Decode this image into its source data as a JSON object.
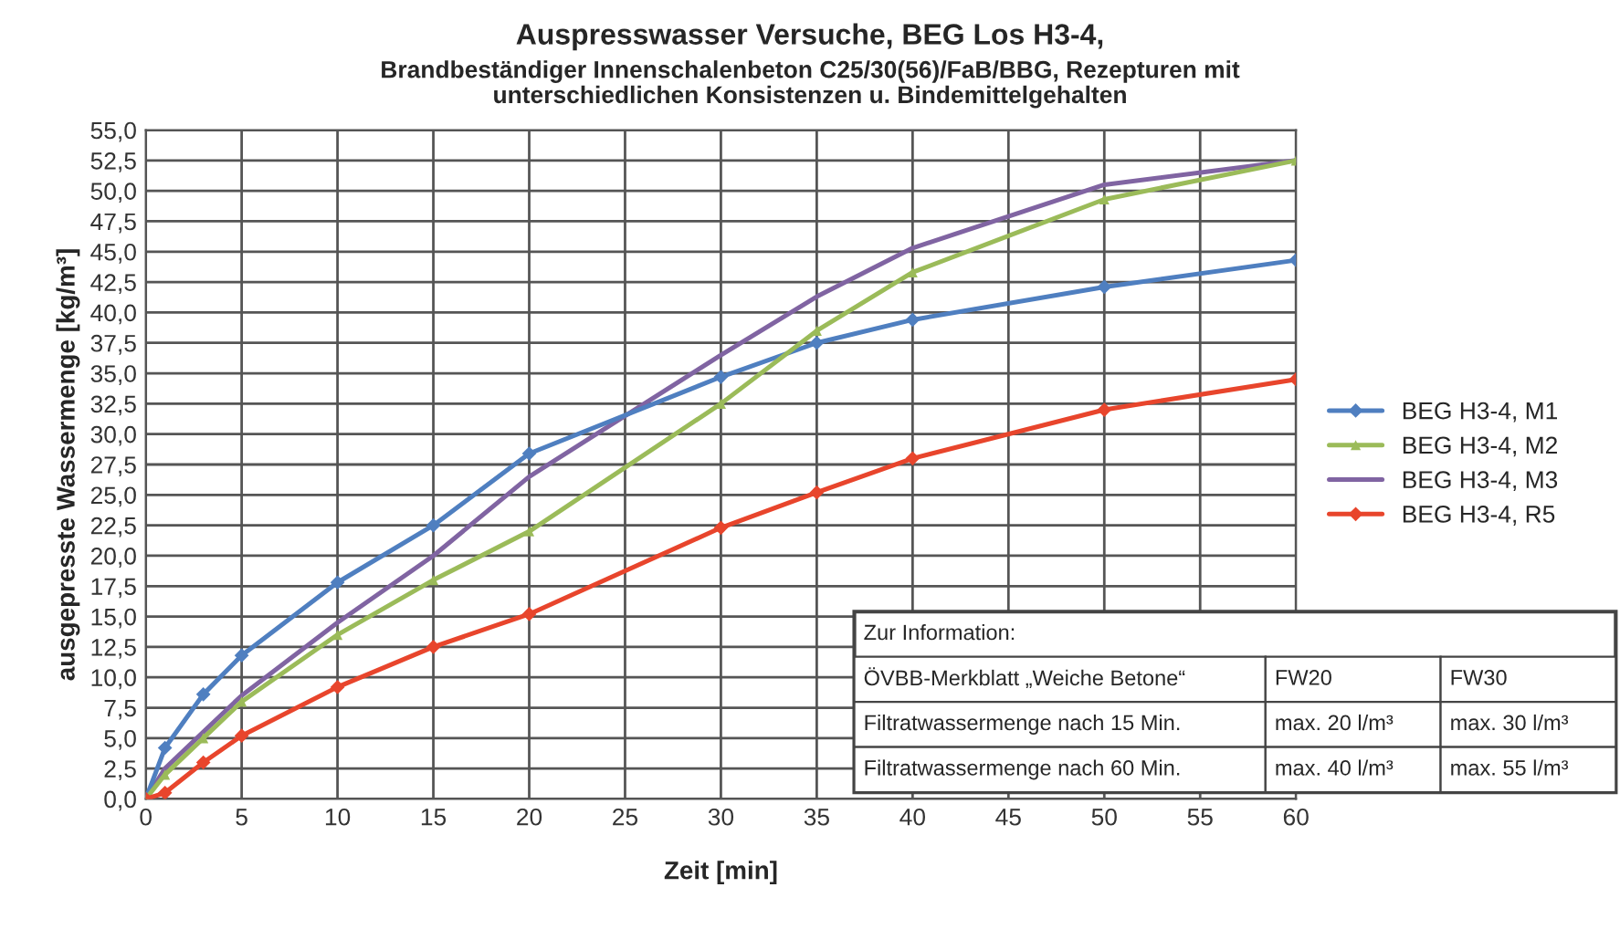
{
  "chart_data": {
    "type": "line",
    "title": "Auspresswasser Versuche, BEG Los H3-4,",
    "subtitle": "Brandbeständiger Innenschalenbeton C25/30(56)/FaB/BBG, Rezepturen mit\nunterschiedlichen Konsistenzen u. Bindemittelgehalten",
    "xlabel": "Zeit [min]",
    "ylabel": "ausgepresste Wassermenge [kg/m³]",
    "x": [
      0,
      1,
      3,
      5,
      10,
      15,
      20,
      30,
      35,
      40,
      50,
      60
    ],
    "series": [
      {
        "name": "BEG H3-4, M1",
        "color": "#4f7fc0",
        "marker": "diamond",
        "values": [
          0,
          4.2,
          8.6,
          11.8,
          17.8,
          22.5,
          28.4,
          34.7,
          37.5,
          39.4,
          42.1,
          44.3
        ]
      },
      {
        "name": "BEG H3-4, M2",
        "color": "#9bbb59",
        "marker": "triangle",
        "values": [
          0,
          2.0,
          5.0,
          8.0,
          13.5,
          18.0,
          22.0,
          32.5,
          38.5,
          43.3,
          49.3,
          52.5
        ]
      },
      {
        "name": "BEG H3-4, M3",
        "color": "#8064a2",
        "marker": "none",
        "values": [
          0,
          2.5,
          5.5,
          8.5,
          14.5,
          20.0,
          26.5,
          36.5,
          41.3,
          45.3,
          50.5,
          52.5
        ]
      },
      {
        "name": "BEG H3-4, R5",
        "color": "#e8452c",
        "marker": "diamond",
        "values": [
          0,
          0.5,
          3.0,
          5.2,
          9.2,
          12.5,
          15.2,
          22.3,
          25.2,
          28.0,
          32.0,
          34.5
        ]
      }
    ],
    "xlim": [
      0,
      60
    ],
    "xticks": [
      0,
      5,
      10,
      15,
      20,
      25,
      30,
      35,
      40,
      45,
      50,
      55,
      60
    ],
    "ylim": [
      0,
      55
    ],
    "yticks": [
      {
        "value": 0,
        "label": "0,0"
      },
      {
        "value": 2.5,
        "label": "2,5"
      },
      {
        "value": 5,
        "label": "5,0"
      },
      {
        "value": 7.5,
        "label": "7,5"
      },
      {
        "value": 10,
        "label": "10,0"
      },
      {
        "value": 12.5,
        "label": "12,5"
      },
      {
        "value": 15,
        "label": "15,0"
      },
      {
        "value": 17.5,
        "label": "17,5"
      },
      {
        "value": 20,
        "label": "20,0"
      },
      {
        "value": 22.5,
        "label": "22,5"
      },
      {
        "value": 25,
        "label": "25,0"
      },
      {
        "value": 27.5,
        "label": "27,5"
      },
      {
        "value": 30,
        "label": "30,0"
      },
      {
        "value": 32.5,
        "label": "32,5"
      },
      {
        "value": 35,
        "label": "35,0"
      },
      {
        "value": 37.5,
        "label": "37,5"
      },
      {
        "value": 40,
        "label": "40,0"
      },
      {
        "value": 42.5,
        "label": "42,5"
      },
      {
        "value": 45,
        "label": "45,0"
      },
      {
        "value": 47.5,
        "label": "47,5"
      },
      {
        "value": 50,
        "label": "50,0"
      },
      {
        "value": 52.5,
        "label": "52,5"
      },
      {
        "value": 55,
        "label": "55,0"
      }
    ],
    "grid": true,
    "legend": "right",
    "line_style": "solid",
    "annotations": [
      "Zur Information:",
      "ÖVBB-Merkblatt „Weiche Betone“",
      "FW20",
      "FW30",
      "Filtratwassermenge nach 15 Min.",
      "max. 20 l/m³",
      "max. 30 l/m³",
      "Filtratwassermenge nach 60 Min.",
      "max. 40 l/m³",
      "max. 55 l/m³"
    ]
  }
}
